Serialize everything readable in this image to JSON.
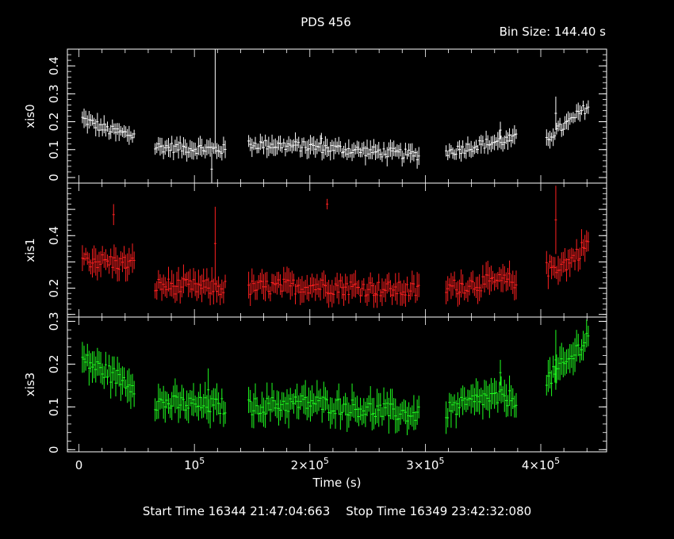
{
  "title": "PDS 456",
  "bin_size": "Bin Size: 144.40 s",
  "start_time": "Start Time 16344 21:47:04:663",
  "stop_time": "Stop Time 16349 23:42:32:080",
  "chart_data": {
    "type": "scatter",
    "title": "PDS 456",
    "xlabel": "Time (s)",
    "xlim": [
      -10000,
      457000
    ],
    "x_ticks": [
      {
        "value": 100000,
        "mantissa": "",
        "exponent": "5"
      },
      {
        "value": 200000,
        "mantissa": "2",
        "exponent": "5"
      },
      {
        "value": 300000,
        "mantissa": "3",
        "exponent": "5"
      },
      {
        "value": 400000,
        "mantissa": "4",
        "exponent": "5"
      }
    ],
    "x_zero_label": "0",
    "segments": [
      [
        3000,
        48000
      ],
      [
        66000,
        128000
      ],
      [
        147000,
        295000
      ],
      [
        318000,
        380000
      ],
      [
        405000,
        442000
      ]
    ],
    "panels": [
      {
        "name": "xis0",
        "ylabel": "xis0",
        "color": "#ffffff",
        "ylim": [
          -0.02,
          0.46
        ],
        "yticks": [
          0,
          0.1,
          0.2,
          0.3,
          0.4
        ],
        "ytick_labels": [
          "0",
          "0.1",
          "0.2",
          "0.3",
          "0.4"
        ],
        "levels": [
          [
            3000,
            0.21
          ],
          [
            25000,
            0.17
          ],
          [
            48000,
            0.15
          ],
          [
            66000,
            0.11
          ],
          [
            128000,
            0.1
          ],
          [
            147000,
            0.12
          ],
          [
            200000,
            0.11
          ],
          [
            295000,
            0.08
          ],
          [
            318000,
            0.09
          ],
          [
            350000,
            0.12
          ],
          [
            380000,
            0.14
          ],
          [
            405000,
            0.14
          ],
          [
            425000,
            0.2
          ],
          [
            442000,
            0.26
          ]
        ],
        "noise": 0.018,
        "err": 0.025,
        "spikes": [
          [
            118000,
            0.46,
            0.35
          ],
          [
            115000,
            0.03,
            0.06
          ],
          [
            210000,
            0.14,
            0.02
          ],
          [
            365000,
            0.17,
            0.03
          ],
          [
            413000,
            0.23,
            0.06
          ]
        ]
      },
      {
        "name": "xis1",
        "ylabel": "xis1",
        "color": "#ff2020",
        "ylim": [
          0.09,
          0.6
        ],
        "yticks": [
          0.1,
          0.2,
          0.3,
          0.4,
          0.5
        ],
        "ytick_labels": [
          "",
          "0.2",
          "",
          "0.4",
          ""
        ],
        "levels": [
          [
            3000,
            0.31
          ],
          [
            25000,
            0.3
          ],
          [
            48000,
            0.29
          ],
          [
            66000,
            0.21
          ],
          [
            128000,
            0.2
          ],
          [
            147000,
            0.2
          ],
          [
            200000,
            0.21
          ],
          [
            295000,
            0.19
          ],
          [
            318000,
            0.2
          ],
          [
            350000,
            0.22
          ],
          [
            380000,
            0.23
          ],
          [
            405000,
            0.27
          ],
          [
            425000,
            0.3
          ],
          [
            442000,
            0.38
          ]
        ],
        "noise": 0.03,
        "err": 0.04,
        "spikes": [
          [
            118000,
            0.37,
            0.14
          ],
          [
            215000,
            0.52,
            0.02
          ],
          [
            413000,
            0.46,
            0.13
          ],
          [
            30000,
            0.48,
            0.04
          ]
        ]
      },
      {
        "name": "xis3",
        "ylabel": "xis3",
        "color": "#20ff20",
        "ylim": [
          -0.005,
          0.31
        ],
        "yticks": [
          0,
          0.1,
          0.2,
          0.3
        ],
        "ytick_labels": [
          "0",
          "0.1",
          "0.2",
          "0.3"
        ],
        "levels": [
          [
            3000,
            0.21
          ],
          [
            25000,
            0.18
          ],
          [
            48000,
            0.15
          ],
          [
            66000,
            0.11
          ],
          [
            128000,
            0.1
          ],
          [
            147000,
            0.1
          ],
          [
            200000,
            0.11
          ],
          [
            295000,
            0.08
          ],
          [
            318000,
            0.09
          ],
          [
            350000,
            0.12
          ],
          [
            380000,
            0.12
          ],
          [
            405000,
            0.16
          ],
          [
            425000,
            0.21
          ],
          [
            442000,
            0.27
          ]
        ],
        "noise": 0.02,
        "err": 0.03,
        "spikes": [
          [
            112000,
            0.14,
            0.05
          ],
          [
            365000,
            0.18,
            0.03
          ],
          [
            413000,
            0.21,
            0.07
          ]
        ]
      }
    ]
  }
}
